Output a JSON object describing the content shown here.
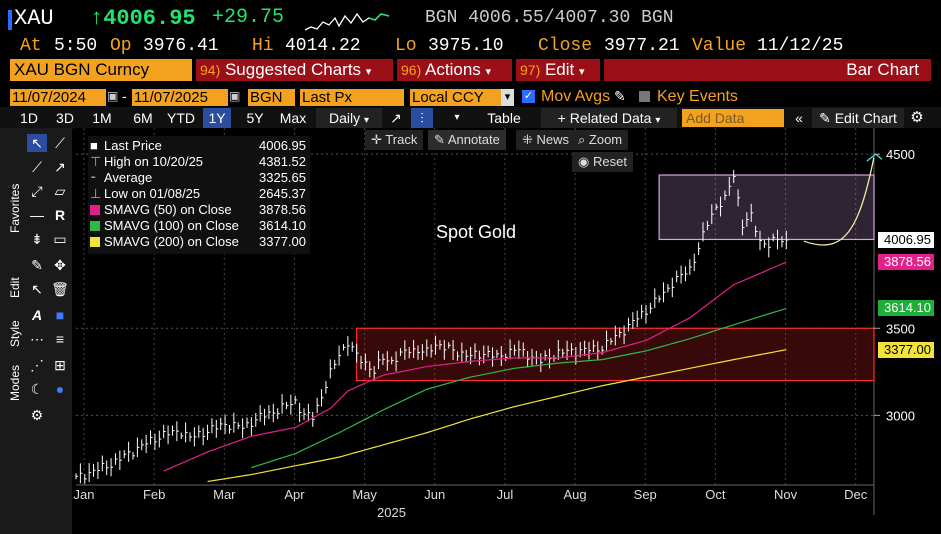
{
  "header": {
    "ticker": "XAU",
    "last_price": "↑4006.95",
    "change": "+29.75",
    "bid_ask_prefix": "BGN",
    "bid": "4006.55",
    "ask": "4007.30",
    "bid_ask_suffix": "BGN",
    "at_label": "At",
    "at_time": "5:50",
    "op_label": "Op",
    "op_value": "3976.41",
    "hi_label": "Hi",
    "hi_value": "4014.22",
    "lo_label": "Lo",
    "lo_value": "3975.10",
    "close_label": "Close",
    "close_value": "3977.21",
    "value_label": "Value",
    "value_date": "11/12/25"
  },
  "menu": {
    "security": "XAU BGN Curncy",
    "suggested_num": "94)",
    "suggested": "Suggested Charts",
    "actions_num": "96)",
    "actions": "Actions",
    "edit_num": "97)",
    "edit": "Edit",
    "chart_type": "Bar Chart"
  },
  "controls": {
    "start_date": "11/07/2024",
    "end_date": "11/07/2025",
    "source": "BGN",
    "field": "Last Px",
    "currency": "Local CCY",
    "mov_avgs": "Mov Avgs",
    "key_events": "Key Events"
  },
  "toolbar": {
    "ranges": [
      "1D",
      "3D",
      "1M",
      "6M",
      "YTD",
      "1Y",
      "5Y",
      "Max"
    ],
    "selected_range": "1Y",
    "period": "Daily",
    "table": "Table",
    "related": "+ Related Data",
    "add_data_placeholder": "Add Data",
    "edit_chart": "Edit Chart"
  },
  "sidebar": {
    "tabs": [
      "Favorites",
      "Edit",
      "Style",
      "Modes"
    ]
  },
  "chart_buttons": {
    "track": "Track",
    "annotate": "Annotate",
    "news": "News",
    "zoom": "Zoom",
    "reset": "Reset"
  },
  "legend": [
    {
      "label": "Last Price",
      "value": "4006.95",
      "color": "#ffffff"
    },
    {
      "label": "High on 10/20/25",
      "value": "4381.52",
      "color": "#888888"
    },
    {
      "label": "Average",
      "value": "3325.65",
      "color": "#888888"
    },
    {
      "label": "Low on 01/08/25",
      "value": "2645.37",
      "color": "#888888"
    },
    {
      "label": "SMAVG (50)  on Close",
      "value": "3878.56",
      "color": "#e0218a"
    },
    {
      "label": "SMAVG (100)  on Close",
      "value": "3614.10",
      "color": "#2fb84a"
    },
    {
      "label": "SMAVG (200)  on Close",
      "value": "3377.00",
      "color": "#f2e33a"
    }
  ],
  "chart_data": {
    "type": "bar",
    "title": "Spot Gold",
    "xlabel": "2025",
    "x_ticks": [
      "Jan",
      "Feb",
      "Mar",
      "Apr",
      "May",
      "Jun",
      "Jul",
      "Aug",
      "Sep",
      "Oct",
      "Nov",
      "Dec"
    ],
    "y_ticks": [
      3000,
      3500,
      4500
    ],
    "ylim": [
      2600,
      4650
    ],
    "series": [
      {
        "name": "Last Price",
        "color": "#ffffff",
        "points": [
          [
            0,
            2640
          ],
          [
            4,
            2680
          ],
          [
            8,
            2720
          ],
          [
            12,
            2780
          ],
          [
            16,
            2840
          ],
          [
            20,
            2890
          ],
          [
            24,
            2910
          ],
          [
            26,
            2870
          ],
          [
            30,
            2910
          ],
          [
            34,
            2950
          ],
          [
            38,
            2930
          ],
          [
            42,
            2990
          ],
          [
            46,
            3030
          ],
          [
            50,
            3080
          ],
          [
            52,
            3000
          ],
          [
            54,
            2990
          ],
          [
            56,
            3110
          ],
          [
            58,
            3240
          ],
          [
            60,
            3350
          ],
          [
            62,
            3420
          ],
          [
            64,
            3340
          ],
          [
            66,
            3300
          ],
          [
            68,
            3250
          ],
          [
            70,
            3330
          ],
          [
            72,
            3310
          ],
          [
            76,
            3380
          ],
          [
            80,
            3360
          ],
          [
            82,
            3410
          ],
          [
            86,
            3370
          ],
          [
            90,
            3340
          ],
          [
            94,
            3360
          ],
          [
            96,
            3330
          ],
          [
            100,
            3380
          ],
          [
            102,
            3360
          ],
          [
            106,
            3310
          ],
          [
            110,
            3360
          ],
          [
            114,
            3370
          ],
          [
            118,
            3380
          ],
          [
            120,
            3390
          ],
          [
            122,
            3430
          ],
          [
            124,
            3470
          ],
          [
            126,
            3510
          ],
          [
            128,
            3560
          ],
          [
            130,
            3600
          ],
          [
            132,
            3650
          ],
          [
            134,
            3700
          ],
          [
            136,
            3760
          ],
          [
            138,
            3800
          ],
          [
            140,
            3840
          ],
          [
            142,
            3960
          ],
          [
            144,
            4100
          ],
          [
            146,
            4200
          ],
          [
            148,
            4240
          ],
          [
            150,
            4381
          ],
          [
            152,
            4100
          ],
          [
            154,
            4140
          ],
          [
            156,
            4000
          ],
          [
            158,
            3980
          ],
          [
            160,
            4010
          ],
          [
            162,
            4007
          ]
        ]
      },
      {
        "name": "SMAVG (50)",
        "color": "#e0218a",
        "points": [
          [
            20,
            2680
          ],
          [
            30,
            2790
          ],
          [
            40,
            2880
          ],
          [
            50,
            2930
          ],
          [
            58,
            3040
          ],
          [
            62,
            3140
          ],
          [
            70,
            3230
          ],
          [
            80,
            3280
          ],
          [
            90,
            3310
          ],
          [
            100,
            3330
          ],
          [
            110,
            3330
          ],
          [
            120,
            3360
          ],
          [
            130,
            3430
          ],
          [
            140,
            3560
          ],
          [
            150,
            3750
          ],
          [
            162,
            3880
          ]
        ]
      },
      {
        "name": "SMAVG (100)",
        "color": "#2fb84a",
        "points": [
          [
            40,
            2700
          ],
          [
            50,
            2780
          ],
          [
            60,
            2900
          ],
          [
            70,
            3030
          ],
          [
            80,
            3150
          ],
          [
            90,
            3220
          ],
          [
            100,
            3270
          ],
          [
            110,
            3300
          ],
          [
            120,
            3320
          ],
          [
            130,
            3370
          ],
          [
            140,
            3440
          ],
          [
            150,
            3520
          ],
          [
            162,
            3614
          ]
        ]
      },
      {
        "name": "SMAVG (200)",
        "color": "#f2e33a",
        "points": [
          [
            30,
            2620
          ],
          [
            40,
            2660
          ],
          [
            50,
            2710
          ],
          [
            60,
            2760
          ],
          [
            70,
            2830
          ],
          [
            80,
            2900
          ],
          [
            90,
            2980
          ],
          [
            100,
            3050
          ],
          [
            110,
            3110
          ],
          [
            120,
            3170
          ],
          [
            130,
            3220
          ],
          [
            140,
            3270
          ],
          [
            150,
            3320
          ],
          [
            162,
            3377
          ]
        ]
      }
    ],
    "x_range": [
      0,
      182
    ],
    "shaded_ranges": [
      {
        "name": "consolidation-box",
        "x": [
          64,
          182
        ],
        "y": [
          3200,
          3500
        ],
        "color": "#ff2b2b"
      },
      {
        "name": "recent-box",
        "x": [
          133,
          182
        ],
        "y": [
          4010,
          4380
        ],
        "color": "#d7a2e6"
      }
    ],
    "value_tags": [
      {
        "value": "4006.95",
        "bg": "#ffffff",
        "fg": "#000000"
      },
      {
        "value": "3878.56",
        "bg": "#e0218a",
        "fg": "#ffffff"
      },
      {
        "value": "3614.10",
        "bg": "#1fae3a",
        "fg": "#ffffff"
      },
      {
        "value": "3377.00",
        "bg": "#f2e33a",
        "fg": "#000000"
      }
    ]
  }
}
